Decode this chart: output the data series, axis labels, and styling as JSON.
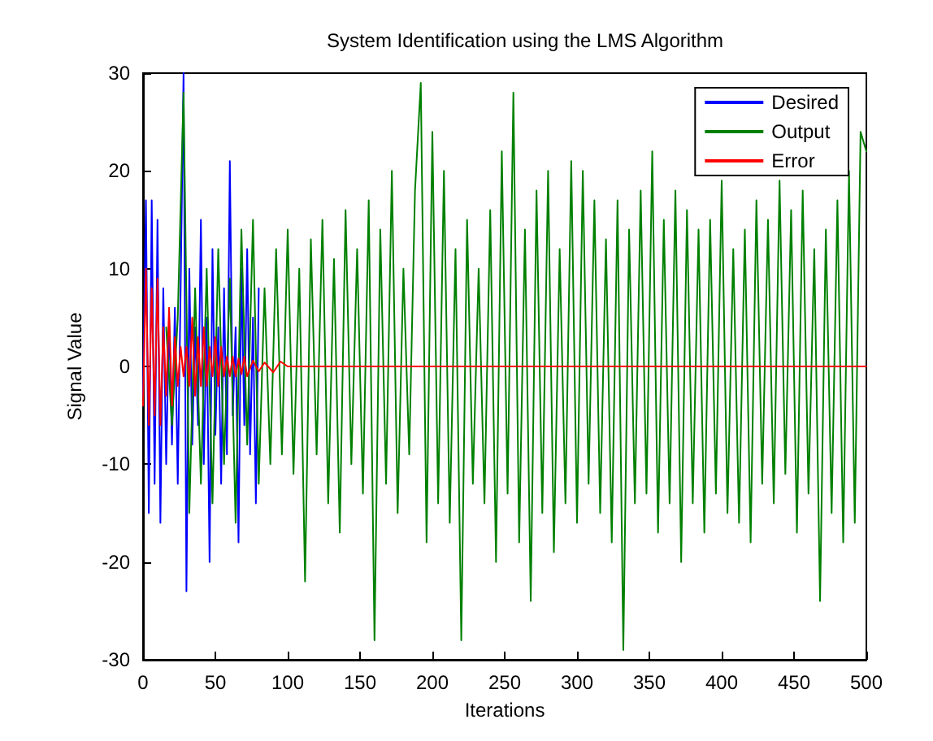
{
  "chart_data": {
    "type": "line",
    "title": "System Identification using the LMS Algorithm",
    "xlabel": "Iterations",
    "ylabel": "Signal Value",
    "xlim": [
      0,
      500
    ],
    "xticks": [
      0,
      50,
      100,
      150,
      200,
      250,
      300,
      350,
      400,
      450,
      500
    ],
    "ylim": [
      -30,
      30
    ],
    "yticks": [
      -30,
      -20,
      -10,
      0,
      10,
      20,
      30
    ],
    "grid": false,
    "legend": "top right",
    "marker": "none",
    "line_style": "solid",
    "series": [
      {
        "name": "Desired",
        "color": "#0000ff",
        "x": [
          0,
          2,
          4,
          6,
          8,
          10,
          12,
          14,
          16,
          18,
          20,
          22,
          24,
          26,
          28,
          30,
          32,
          34,
          36,
          38,
          40,
          42,
          44,
          46,
          48,
          50,
          52,
          54,
          56,
          58,
          60,
          62,
          64,
          66,
          68,
          70,
          72,
          74,
          76,
          78,
          80
        ],
        "values": [
          -3,
          17,
          -15,
          17,
          -12,
          15,
          -16,
          8,
          -10,
          5,
          -8,
          6,
          -12,
          8,
          30,
          -23,
          10,
          -8,
          4,
          -6,
          15,
          -10,
          5,
          -20,
          12,
          -7,
          4,
          -12,
          8,
          -9,
          21,
          -5,
          4,
          -18,
          10,
          -6,
          12,
          -9,
          5,
          -14,
          8
        ]
      },
      {
        "name": "Output",
        "color": "#008000",
        "x": [
          16,
          20,
          24,
          28,
          32,
          36,
          40,
          44,
          48,
          52,
          56,
          60,
          64,
          68,
          72,
          76,
          80,
          84,
          88,
          92,
          96,
          100,
          104,
          108,
          112,
          116,
          120,
          124,
          128,
          132,
          136,
          140,
          144,
          148,
          152,
          156,
          160,
          164,
          168,
          172,
          176,
          180,
          184,
          188,
          192,
          196,
          200,
          204,
          208,
          212,
          216,
          220,
          224,
          228,
          232,
          236,
          240,
          244,
          248,
          252,
          256,
          260,
          264,
          268,
          272,
          276,
          280,
          284,
          288,
          292,
          296,
          300,
          304,
          308,
          312,
          316,
          320,
          324,
          328,
          332,
          336,
          340,
          344,
          348,
          352,
          356,
          360,
          364,
          368,
          372,
          376,
          380,
          384,
          388,
          392,
          396,
          400,
          404,
          408,
          412,
          416,
          420,
          424,
          428,
          432,
          436,
          440,
          444,
          448,
          452,
          456,
          460,
          464,
          468,
          472,
          476,
          480,
          484,
          488,
          492,
          496,
          500
        ],
        "values": [
          4,
          -6,
          5,
          28,
          -15,
          8,
          -12,
          10,
          -14,
          12,
          -10,
          9,
          -16,
          14,
          -8,
          15,
          -12,
          8,
          -10,
          12,
          -9,
          14,
          -11,
          10,
          -22,
          13,
          -9,
          15,
          -14,
          11,
          -17,
          16,
          -10,
          12,
          -13,
          17,
          -28,
          14,
          -12,
          20,
          -15,
          10,
          -9,
          18,
          29,
          -18,
          24,
          -14,
          20,
          -16,
          12,
          -28,
          15,
          -12,
          10,
          -14,
          16,
          -20,
          22,
          -13,
          28,
          -18,
          14,
          -24,
          18,
          -15,
          20,
          -19,
          12,
          -14,
          21,
          -16,
          20,
          -12,
          17,
          -15,
          13,
          -18,
          17,
          -29,
          14,
          -14,
          18,
          -13,
          22,
          -17,
          15,
          -14,
          18,
          -20,
          16,
          -14,
          14,
          -17,
          15,
          -13,
          19,
          -15,
          12,
          -16,
          14,
          -18,
          17,
          -12,
          15,
          -14,
          19,
          -11,
          16,
          -17,
          18,
          -13,
          12,
          -24,
          14,
          -15,
          17,
          -18,
          20,
          -16,
          24,
          22
        ]
      },
      {
        "name": "Error",
        "color": "#ff0000",
        "x": [
          0,
          2,
          4,
          6,
          8,
          10,
          12,
          14,
          16,
          18,
          20,
          22,
          24,
          26,
          28,
          30,
          32,
          34,
          36,
          38,
          40,
          42,
          44,
          46,
          48,
          50,
          52,
          54,
          56,
          58,
          60,
          62,
          64,
          66,
          68,
          70,
          72,
          76,
          80,
          84,
          90,
          95,
          100,
          150,
          200,
          250,
          300,
          350,
          400,
          450,
          500
        ],
        "values": [
          -4,
          10,
          -6,
          8,
          -5,
          9,
          -6,
          4,
          -3,
          6,
          -4,
          3,
          -2,
          2,
          -1,
          2,
          -2,
          5,
          -3,
          3,
          -2,
          4,
          -2,
          2,
          -1,
          3,
          -2,
          2,
          -1,
          1,
          -1,
          1,
          -1,
          0.8,
          -0.8,
          1,
          -1,
          0.6,
          -0.5,
          0.4,
          -0.6,
          0.5,
          0,
          0,
          0,
          0,
          0,
          0,
          0,
          0,
          0
        ]
      }
    ]
  }
}
